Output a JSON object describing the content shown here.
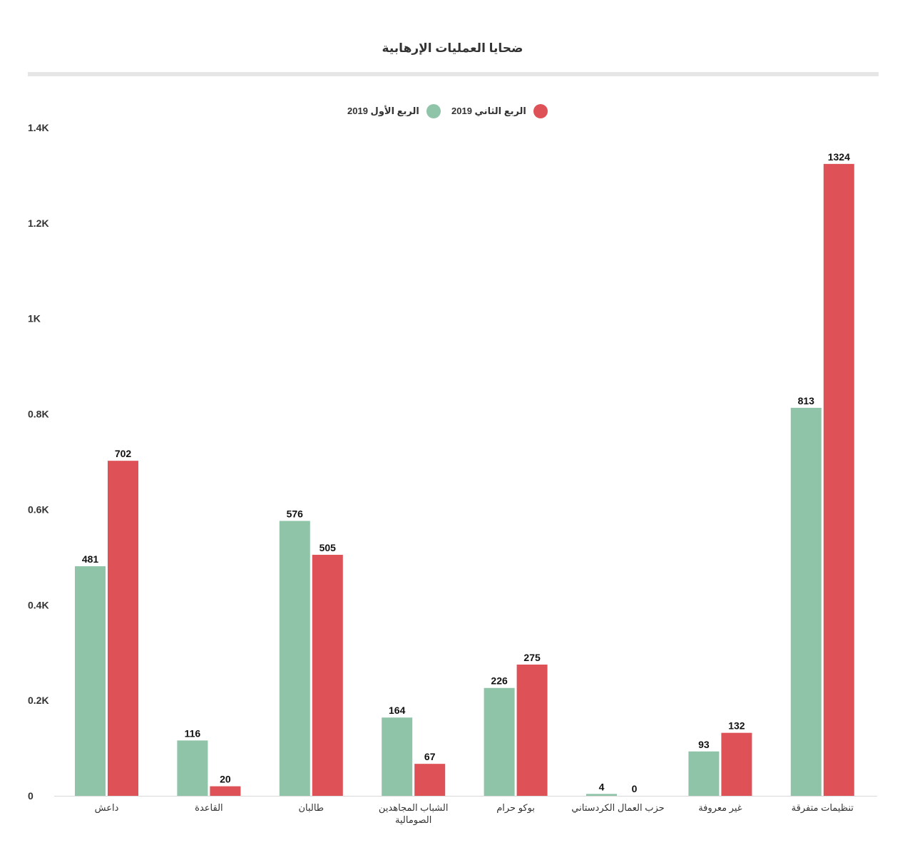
{
  "chart_data": {
    "type": "bar",
    "title": "ضحايا العمليات الإرهابية",
    "categories": [
      [
        "داعش"
      ],
      [
        "القاعدة"
      ],
      [
        "طالبان"
      ],
      [
        "الشباب المجاهدين",
        "الصومالية"
      ],
      [
        "بوكو حرام"
      ],
      [
        "حزب العمال الكردستاني"
      ],
      [
        "غير معروفة"
      ],
      [
        "تنظيمات متفرقة"
      ]
    ],
    "series": [
      {
        "name": "الربع الأول 2019",
        "color": "#8fc4a8",
        "values": [
          481,
          116,
          576,
          164,
          226,
          4,
          93,
          813
        ]
      },
      {
        "name": "الربع الثاني 2019",
        "color": "#de5257",
        "values": [
          702,
          20,
          505,
          67,
          275,
          0,
          132,
          1324
        ]
      }
    ],
    "ylim": [
      0,
      1400
    ],
    "yticks": [
      0,
      200,
      400,
      600,
      800,
      1000,
      1200,
      1400
    ],
    "ytick_labels": [
      "0",
      "0.2K",
      "0.4K",
      "0.6K",
      "0.8K",
      "1K",
      "1.2K",
      "1.4K"
    ],
    "legend_position": "top-center",
    "data_labels": true,
    "grid": false
  }
}
